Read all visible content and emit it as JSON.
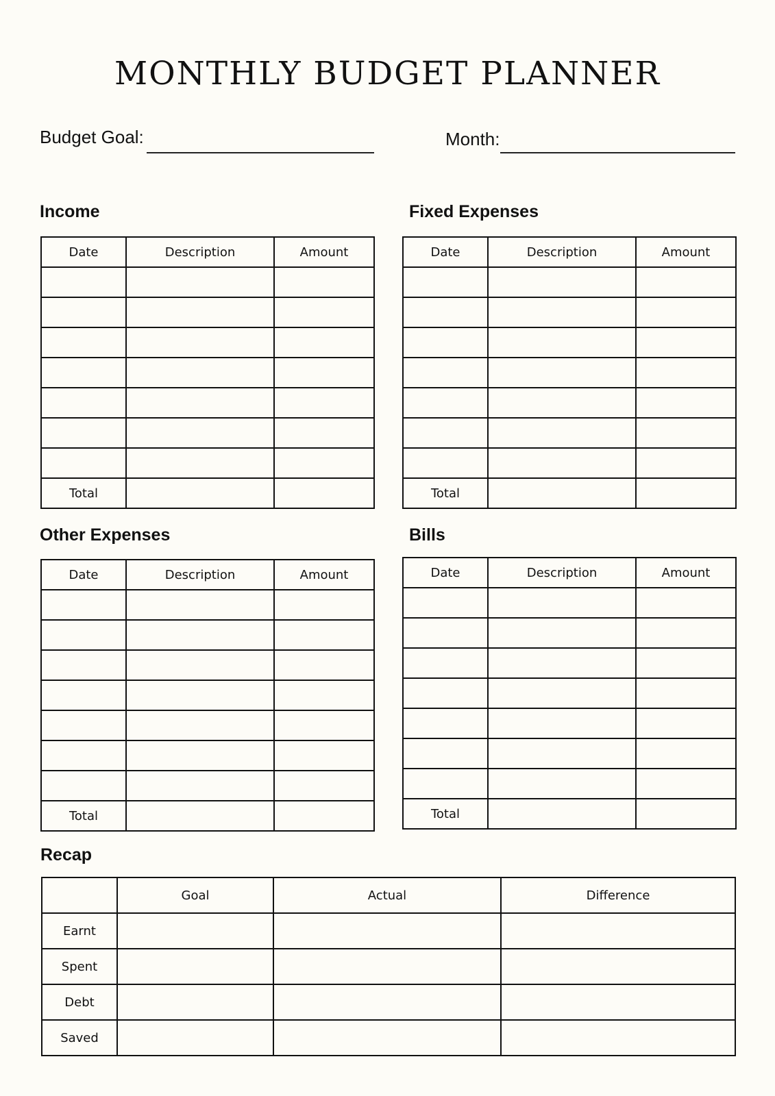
{
  "title": "MONTHLY BUDGET PLANNER",
  "fields": {
    "budget_goal": "Budget Goal:",
    "month": "Month:"
  },
  "sections": {
    "income": {
      "title": "Income"
    },
    "fixed": {
      "title": "Fixed Expenses"
    },
    "other": {
      "title": "Other Expenses"
    },
    "bills": {
      "title": "Bills"
    }
  },
  "table": {
    "headers": [
      "Date",
      "Description",
      "Amount"
    ],
    "total": "Total"
  },
  "recap": {
    "title": "Recap",
    "headers": [
      "",
      "Goal",
      "Actual",
      "Difference"
    ],
    "rows": [
      "Earnt",
      "Spent",
      "Debt",
      "Saved"
    ]
  }
}
